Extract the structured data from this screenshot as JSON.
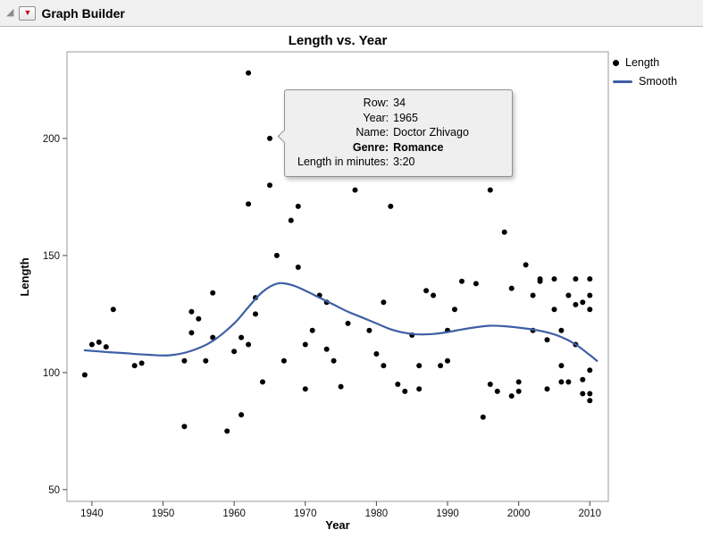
{
  "window": {
    "title": "Graph Builder"
  },
  "icons": {
    "disclosure_triangle": "◢",
    "red_triangle_menu": "▼",
    "red_triangle_color": "#c1121c"
  },
  "chart_data": {
    "type": "scatter",
    "title": "Length vs. Year",
    "xlabel": "Year",
    "ylabel": "Length",
    "xlim": [
      1936.5,
      2012.6
    ],
    "ylim": [
      45,
      237
    ],
    "x_ticks": [
      1940,
      1950,
      1960,
      1970,
      1980,
      1990,
      2000,
      2010
    ],
    "y_ticks": [
      50,
      100,
      150,
      200
    ],
    "grid": false,
    "legend_position": "right",
    "series": [
      {
        "name": "Length",
        "type": "scatter",
        "color": "#000000",
        "points": [
          [
            1939,
            99
          ],
          [
            1940,
            112
          ],
          [
            1941,
            113
          ],
          [
            1942,
            111
          ],
          [
            1943,
            127
          ],
          [
            1946,
            103
          ],
          [
            1947,
            104
          ],
          [
            1953,
            77
          ],
          [
            1953,
            105
          ],
          [
            1954,
            117
          ],
          [
            1954,
            126
          ],
          [
            1955,
            123
          ],
          [
            1956,
            105
          ],
          [
            1957,
            134
          ],
          [
            1957,
            115
          ],
          [
            1959,
            75
          ],
          [
            1960,
            109
          ],
          [
            1961,
            115
          ],
          [
            1961,
            82
          ],
          [
            1962,
            228
          ],
          [
            1962,
            172
          ],
          [
            1962,
            112
          ],
          [
            1963,
            132
          ],
          [
            1963,
            125
          ],
          [
            1964,
            96
          ],
          [
            1965,
            200
          ],
          [
            1965,
            180
          ],
          [
            1966,
            150
          ],
          [
            1967,
            105
          ],
          [
            1968,
            165
          ],
          [
            1969,
            171
          ],
          [
            1969,
            145
          ],
          [
            1970,
            112
          ],
          [
            1970,
            93
          ],
          [
            1971,
            118
          ],
          [
            1972,
            133
          ],
          [
            1973,
            130
          ],
          [
            1973,
            110
          ],
          [
            1974,
            105
          ],
          [
            1975,
            94
          ],
          [
            1976,
            121
          ],
          [
            1977,
            178
          ],
          [
            1979,
            118
          ],
          [
            1980,
            108
          ],
          [
            1981,
            130
          ],
          [
            1981,
            103
          ],
          [
            1982,
            171
          ],
          [
            1983,
            95
          ],
          [
            1984,
            92
          ],
          [
            1985,
            116
          ],
          [
            1986,
            103
          ],
          [
            1986,
            93
          ],
          [
            1987,
            135
          ],
          [
            1988,
            133
          ],
          [
            1989,
            103
          ],
          [
            1990,
            105
          ],
          [
            1990,
            118
          ],
          [
            1991,
            127
          ],
          [
            1992,
            139
          ],
          [
            1994,
            138
          ],
          [
            1995,
            81
          ],
          [
            1996,
            178
          ],
          [
            1996,
            95
          ],
          [
            1997,
            92
          ],
          [
            1998,
            160
          ],
          [
            1999,
            136
          ],
          [
            1999,
            90
          ],
          [
            2000,
            96
          ],
          [
            2000,
            92
          ],
          [
            2001,
            146
          ],
          [
            2002,
            133
          ],
          [
            2002,
            118
          ],
          [
            2003,
            140
          ],
          [
            2003,
            139
          ],
          [
            2004,
            93
          ],
          [
            2004,
            114
          ],
          [
            2005,
            140
          ],
          [
            2005,
            127
          ],
          [
            2006,
            96
          ],
          [
            2006,
            103
          ],
          [
            2006,
            118
          ],
          [
            2007,
            133
          ],
          [
            2007,
            96
          ],
          [
            2008,
            140
          ],
          [
            2008,
            112
          ],
          [
            2008,
            129
          ],
          [
            2009,
            97
          ],
          [
            2009,
            91
          ],
          [
            2009,
            130
          ],
          [
            2010,
            140
          ],
          [
            2010,
            133
          ],
          [
            2010,
            127
          ],
          [
            2010,
            101
          ],
          [
            2010,
            91
          ],
          [
            2010,
            88
          ]
        ]
      },
      {
        "name": "Smooth",
        "type": "line",
        "color": "#3e5fa5",
        "points": [
          [
            1939,
            109.5
          ],
          [
            1942,
            108.8
          ],
          [
            1945,
            108.2
          ],
          [
            1948,
            107.6
          ],
          [
            1951,
            107.4
          ],
          [
            1954,
            109.3
          ],
          [
            1957,
            113.5
          ],
          [
            1960,
            121
          ],
          [
            1962,
            128
          ],
          [
            1964,
            134.5
          ],
          [
            1966,
            138
          ],
          [
            1968,
            137.5
          ],
          [
            1970,
            135
          ],
          [
            1972,
            132
          ],
          [
            1974,
            129
          ],
          [
            1976,
            126
          ],
          [
            1978,
            123.5
          ],
          [
            1980,
            121
          ],
          [
            1982,
            118.5
          ],
          [
            1984,
            117
          ],
          [
            1986,
            116.3
          ],
          [
            1988,
            116.5
          ],
          [
            1990,
            117.3
          ],
          [
            1992,
            118.4
          ],
          [
            1994,
            119.4
          ],
          [
            1996,
            120
          ],
          [
            1998,
            119.8
          ],
          [
            2000,
            119.2
          ],
          [
            2002,
            118.4
          ],
          [
            2004,
            117.2
          ],
          [
            2006,
            115.2
          ],
          [
            2008,
            112
          ],
          [
            2010,
            107.5
          ],
          [
            2011,
            105
          ]
        ]
      }
    ]
  },
  "legend": {
    "items": [
      {
        "label": "Length",
        "marker": "dot",
        "color": "#000000"
      },
      {
        "label": "Smooth",
        "marker": "line",
        "color": "#3e5fa5"
      }
    ]
  },
  "tooltip": {
    "rows": [
      {
        "label": "Row:",
        "value": "34",
        "bold": false
      },
      {
        "label": "Year:",
        "value": "1965",
        "bold": false
      },
      {
        "label": "Name:",
        "value": "Doctor Zhivago",
        "bold": false
      },
      {
        "label": "Genre:",
        "value": "Romance",
        "bold": true
      },
      {
        "label": "Length in minutes:",
        "value": "3:20",
        "bold": false
      }
    ]
  }
}
